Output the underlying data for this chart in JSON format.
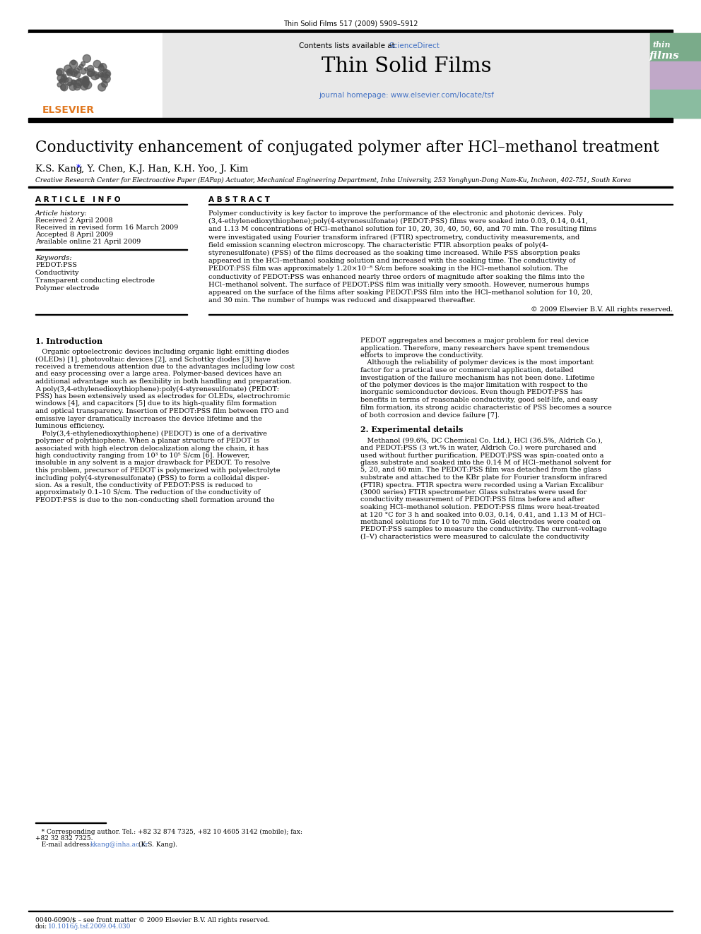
{
  "journal_ref": "Thin Solid Films 517 (2009) 5909–5912",
  "contents_text": "Contents lists available at ",
  "sciencedirect_text": "ScienceDirect",
  "journal_title": "Thin Solid Films",
  "journal_homepage": "journal homepage: www.elsevier.com/locate/tsf",
  "paper_title": "Conductivity enhancement of conjugated polymer after HCl–methanol treatment",
  "authors_pre": "K.S. Kang ",
  "authors_star": "*",
  "authors_post": ", Y. Chen, K.J. Han, K.H. Yoo, J. Kim",
  "affiliation": "Creative Research Center for Electroactive Paper (EAPap) Actuator, Mechanical Engineering Department, Inha University, 253 Yonghyun-Dong Nam-Ku, Incheon, 402-751, South Korea",
  "article_info_header": "A R T I C L E   I N F O",
  "abstract_header": "A B S T R A C T",
  "article_history_label": "Article history:",
  "received": "Received 2 April 2008",
  "received_revised": "Received in revised form 16 March 2009",
  "accepted": "Accepted 8 April 2009",
  "available": "Available online 21 April 2009",
  "keywords_label": "Keywords:",
  "keywords": [
    "PEDOT:PSS",
    "Conductivity",
    "Transparent conducting electrode",
    "Polymer electrode"
  ],
  "abstract_lines": [
    "Polymer conductivity is key factor to improve the performance of the electronic and photonic devices. Poly",
    "(3,4-ethylenedioxythiophene);poly(4-styrenesulfonate) (PEDOT:PSS) films were soaked into 0.03, 0.14, 0.41,",
    "and 1.13 M concentrations of HCl–methanol solution for 10, 20, 30, 40, 50, 60, and 70 min. The resulting films",
    "were investigated using Fourier transform infrared (FTIR) spectrometry, conductivity measurements, and",
    "field emission scanning electron microscopy. The characteristic FTIR absorption peaks of poly(4-",
    "styrenesulfonate) (PSS) of the films decreased as the soaking time increased. While PSS absorption peaks",
    "appeared in the HCl–methanol soaking solution and increased with the soaking time. The conductivity of",
    "PEDOT:PSS film was approximately 1.20×10⁻⁸ S/cm before soaking in the HCl–methanol solution. The",
    "conductivity of PEDOT:PSS was enhanced nearly three orders of magnitude after soaking the films into the",
    "HCl–methanol solvent. The surface of PEDOT:PSS film was initially very smooth. However, numerous humps",
    "appeared on the surface of the films after soaking PEDOT:PSS film into the HCl–methanol solution for 10, 20,",
    "and 30 min. The number of humps was reduced and disappeared thereafter."
  ],
  "copyright": "© 2009 Elsevier B.V. All rights reserved.",
  "intro_header": "1. Introduction",
  "intro_left_lines": [
    "   Organic optoelectronic devices including organic light emitting diodes",
    "(OLEDs) [1], photovoltaic devices [2], and Schottky diodes [3] have",
    "received a tremendous attention due to the advantages including low cost",
    "and easy processing over a large area. Polymer-based devices have an",
    "additional advantage such as flexibility in both handling and preparation.",
    "A poly(3,4-ethylenedioxythiophene):poly(4-styrenesulfonate) (PEDOT:",
    "PSS) has been extensively used as electrodes for OLEDs, electrochromic",
    "windows [4], and capacitors [5] due to its high-quality film formation",
    "and optical transparency. Insertion of PEDOT:PSS film between ITO and",
    "emissive layer dramatically increases the device lifetime and the",
    "luminous efficiency.",
    "   Poly(3,4-ethylenedioxythiophene) (PEDOT) is one of a derivative",
    "polymer of polythiophene. When a planar structure of PEDOT is",
    "associated with high electron delocalization along the chain, it has",
    "high conductivity ranging from 10³ to 10⁵ S/cm [6]. However,",
    "insoluble in any solvent is a major drawback for PEDOT. To resolve",
    "this problem, precursor of PEDOT is polymerized with polyelectrolyte",
    "including poly(4-styrenesulfonate) (PSS) to form a colloidal disper-",
    "sion. As a result, the conductivity of PEDOT:PSS is reduced to",
    "approximately 0.1–10 S/cm. The reduction of the conductivity of",
    "PEODT:PSS is due to the non-conducting shell formation around the"
  ],
  "intro_right_lines": [
    "PEDOT aggregates and becomes a major problem for real device",
    "application. Therefore, many researchers have spent tremendous",
    "efforts to improve the conductivity.",
    "   Although the reliability of polymer devices is the most important",
    "factor for a practical use or commercial application, detailed",
    "investigation of the failure mechanism has not been done. Lifetime",
    "of the polymer devices is the major limitation with respect to the",
    "inorganic semiconductor devices. Even though PEDOT:PSS has",
    "benefits in terms of reasonable conductivity, good self-life, and easy",
    "film formation, its strong acidic characteristic of PSS becomes a source",
    "of both corrosion and device failure [7]."
  ],
  "exp_header": "2. Experimental details",
  "exp_lines": [
    "   Methanol (99.6%, DC Chemical Co. Ltd.), HCl (36.5%, Aldrich Co.),",
    "and PEDOT:PSS (3 wt.% in water, Aldrich Co.) were purchased and",
    "used without further purification. PEDOT:PSS was spin-coated onto a",
    "glass substrate and soaked into the 0.14 M of HCl–methanol solvent for",
    "5, 20, and 60 min. The PEDOT:PSS film was detached from the glass",
    "substrate and attached to the KBr plate for Fourier transform infrared",
    "(FTIR) spectra. FTIR spectra were recorded using a Varian Excalibur",
    "(3000 series) FTIR spectrometer. Glass substrates were used for",
    "conductivity measurement of PEDOT:PSS films before and after",
    "soaking HCl–methanol solution. PEDOT:PSS films were heat-treated",
    "at 120 °C for 3 h and soaked into 0.03, 0.14, 0.41, and 1.13 M of HCl–",
    "methanol solutions for 10 to 70 min. Gold electrodes were coated on",
    "PEDOT:PSS samples to measure the conductivity. The current–voltage",
    "(I–V) characteristics were measured to calculate the conductivity"
  ],
  "footnote_line1": "   * Corresponding author. Tel.: +82 32 874 7325, +82 10 4605 3142 (mobile); fax:",
  "footnote_line2": "+82 32 832 7325.",
  "footnote_line3_pre": "   E-mail address: ",
  "footnote_email_link": "kkang@inha.ac.kr",
  "footnote_line3_post": " (K.S. Kang).",
  "footer_issn": "0040-6090/$ – see front matter © 2009 Elsevier B.V. All rights reserved.",
  "footer_doi_pre": "doi:",
  "footer_doi_link": "10.1016/j.tsf.2009.04.030",
  "sciencedirect_color": "#4472c4",
  "elsevier_color": "#e07820",
  "link_color": "#4472c4",
  "background_color": "#ffffff",
  "text_color": "#000000",
  "header_bg": "#e8e8e8",
  "cover_top_color": "#7aab8a",
  "cover_mid_color": "#c0a8c8",
  "cover_bot_color": "#8abca0"
}
